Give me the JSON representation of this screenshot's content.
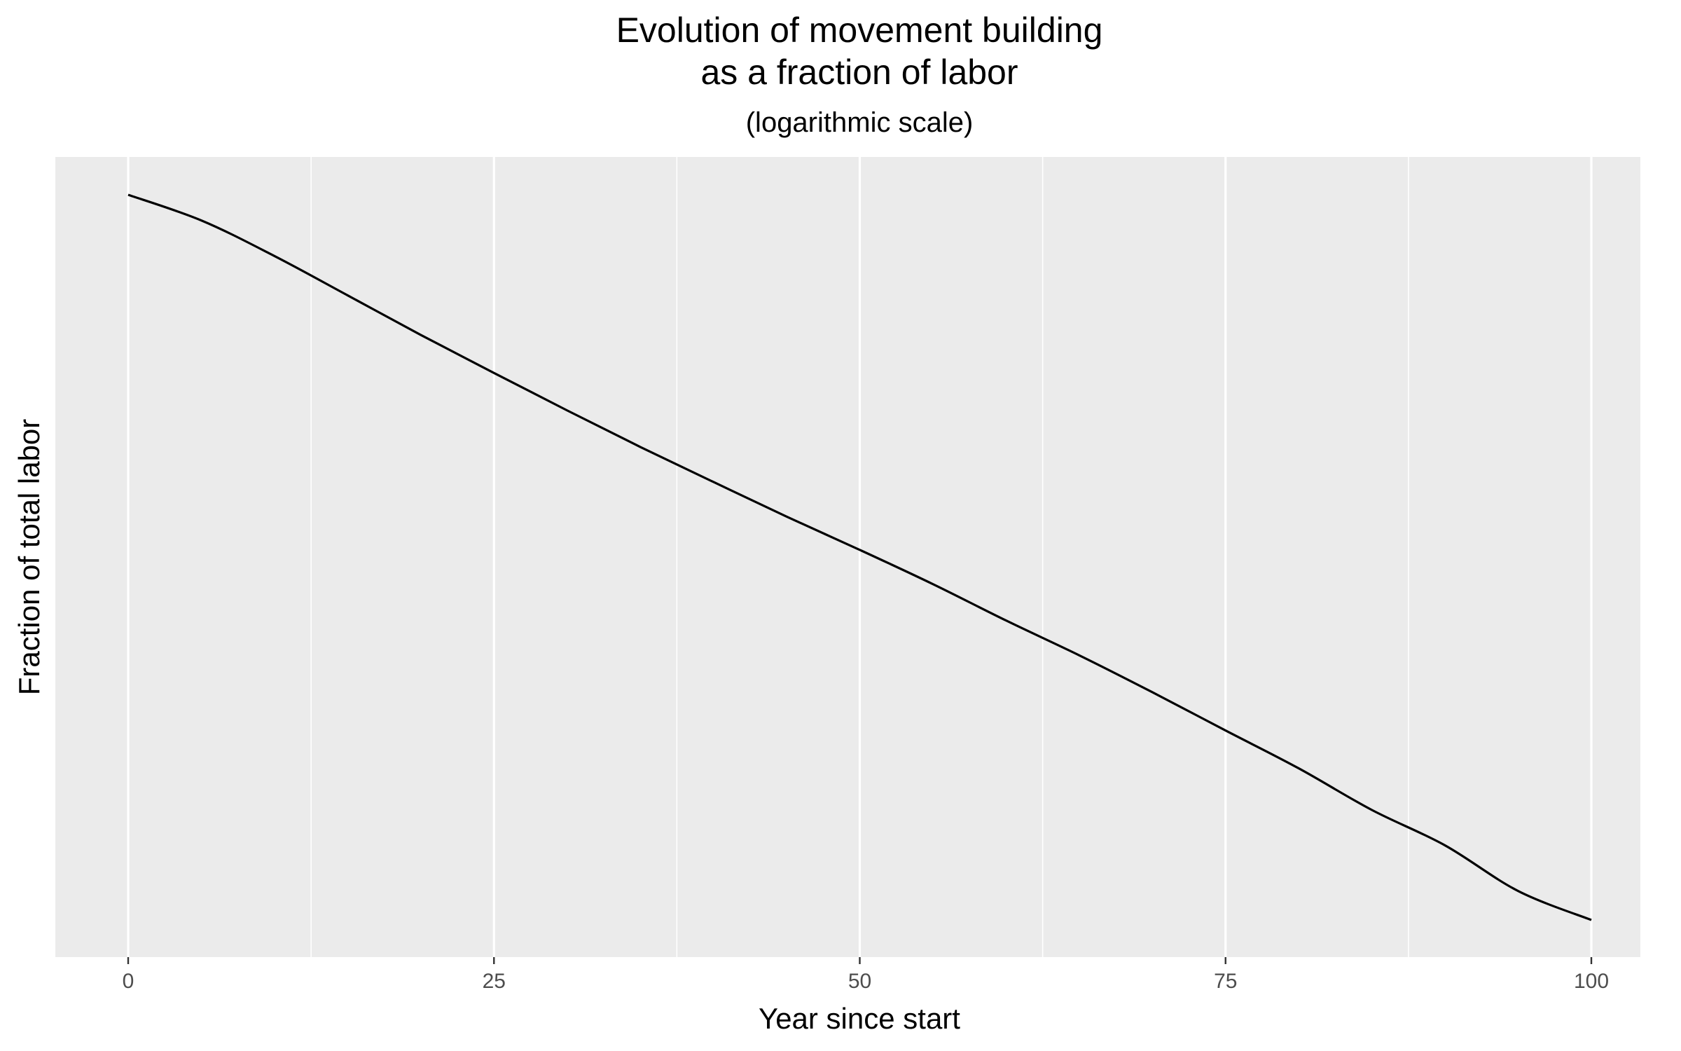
{
  "chart_data": {
    "type": "line",
    "title": [
      "Evolution of movement building",
      "as a fraction of labor"
    ],
    "subtitle": "(logarithmic scale)",
    "xlabel": "Year since start",
    "ylabel": "Fraction of total labor",
    "x_ticks": [
      0,
      25,
      50,
      75,
      100
    ],
    "x_tick_labels": [
      "0",
      "25",
      "50",
      "75",
      "100"
    ],
    "xlim": [
      0,
      100
    ],
    "y_tick_labels": [],
    "y_axis_scale": "log",
    "grid": true,
    "legend": "none",
    "series": [
      {
        "color": "#000000",
        "x": [
          0,
          5,
          10,
          15,
          20,
          25,
          30,
          35,
          40,
          45,
          50,
          55,
          60,
          65,
          70,
          75,
          80,
          85,
          90,
          95,
          100
        ],
        "y": [
          0.965,
          0.821,
          0.656,
          0.512,
          0.399,
          0.314,
          0.248,
          0.197,
          0.158,
          0.127,
          0.103,
          0.083,
          0.066,
          0.053,
          0.042,
          0.033,
          0.026,
          0.02,
          0.016,
          0.012,
          0.01
        ]
      }
    ]
  },
  "colors": {
    "panel_background": "#ebebeb",
    "grid_major": "#ffffff",
    "line": "#000000"
  }
}
